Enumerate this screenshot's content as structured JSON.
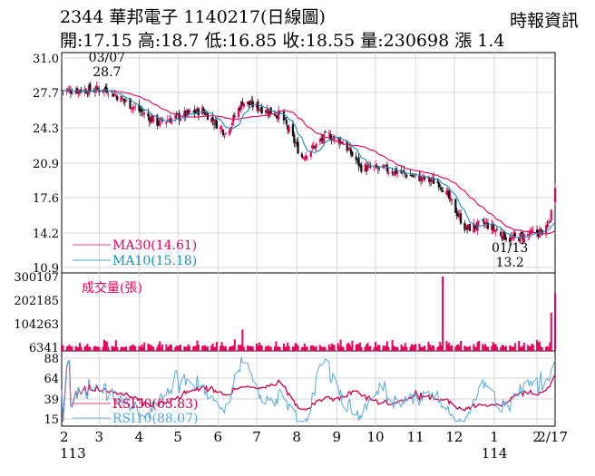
{
  "header": {
    "title": "2344  華邦電子 1140217(日線圖)",
    "ohlc": "開:17.15 高:18.7 低:16.85 收:18.55 量:230698 漲 1.4",
    "source": "時報資訊"
  },
  "colors": {
    "up": "#e8005a",
    "down": "#111111",
    "ma30": "#e0005a",
    "ma10": "#1a8fb0",
    "rsi30": "#d0004e",
    "rsi10": "#5aa8d8",
    "volume": "#e8005a",
    "grid": "#c8c8c8"
  },
  "chart_data": {
    "type": "candlestick",
    "price_panel": {
      "ylim": [
        10.9,
        31.0
      ],
      "yticks": [
        "31.0",
        "27.7",
        "24.3",
        "20.9",
        "17.6",
        "14.2",
        "10.9"
      ],
      "annotations": [
        {
          "label": "03/07",
          "value": "28.7",
          "date": "2024-03-07"
        },
        {
          "label": "01/13",
          "value": "13.2",
          "date": "2025-01-13"
        }
      ],
      "legend": [
        {
          "name": "MA30",
          "text": "MA30(14.61)",
          "value": 14.61
        },
        {
          "name": "MA10",
          "text": "MA10(15.18)",
          "value": 15.18
        }
      ],
      "key_points": [
        {
          "date": "2024-02-01",
          "close": 27.9
        },
        {
          "date": "2024-03-07",
          "close": 28.0,
          "high": 28.7
        },
        {
          "date": "2024-04-15",
          "close": 24.8
        },
        {
          "date": "2024-05-20",
          "close": 26.0
        },
        {
          "date": "2024-06-07",
          "close": 23.8
        },
        {
          "date": "2024-06-20",
          "close": 26.8
        },
        {
          "date": "2024-07-20",
          "close": 25.5
        },
        {
          "date": "2024-08-05",
          "close": 21.5
        },
        {
          "date": "2024-08-25",
          "close": 23.6
        },
        {
          "date": "2024-09-05",
          "close": 23.0
        },
        {
          "date": "2024-09-20",
          "close": 20.5
        },
        {
          "date": "2024-10-10",
          "close": 20.3
        },
        {
          "date": "2024-11-20",
          "close": 19.0
        },
        {
          "date": "2024-12-10",
          "close": 14.6
        },
        {
          "date": "2024-12-25",
          "close": 15.1
        },
        {
          "date": "2025-01-13",
          "close": 13.6,
          "low": 13.2
        },
        {
          "date": "2025-02-10",
          "close": 14.5
        },
        {
          "date": "2025-02-13",
          "close": 15.5
        },
        {
          "date": "2025-02-17",
          "open": 17.15,
          "high": 18.7,
          "low": 16.85,
          "close": 18.55
        }
      ]
    },
    "volume_panel": {
      "title": "成交量(張)",
      "yticks": [
        "300107",
        "202185",
        "104263",
        "6341"
      ],
      "ylim": [
        6341,
        300107
      ],
      "spikes": [
        {
          "date": "2024-06-20",
          "volume": 80000
        },
        {
          "date": "2024-11-22",
          "volume": 300107
        },
        {
          "date": "2025-02-14",
          "volume": 150000
        },
        {
          "date": "2025-02-17",
          "volume": 230698
        }
      ]
    },
    "rsi_panel": {
      "yticks": [
        "88",
        "64",
        "39",
        "15"
      ],
      "ylim": [
        15,
        88
      ],
      "legend": [
        {
          "name": "RSI30",
          "text": "RSI30(63.83)",
          "value": 63.83
        },
        {
          "name": "RSI10",
          "text": "RSI10(88.07)",
          "value": 88.07
        }
      ]
    },
    "x_axis": {
      "tick_labels": [
        {
          "label": "2",
          "date": "2024-02-01"
        },
        {
          "label": "3",
          "date": "2024-03-01"
        },
        {
          "label": "4",
          "date": "2024-04-01"
        },
        {
          "label": "5",
          "date": "2024-05-01"
        },
        {
          "label": "6",
          "date": "2024-06-01"
        },
        {
          "label": "7",
          "date": "2024-07-01"
        },
        {
          "label": "8",
          "date": "2024-08-01"
        },
        {
          "label": "9",
          "date": "2024-09-01"
        },
        {
          "label": "10",
          "date": "2024-10-01"
        },
        {
          "label": "11",
          "date": "2024-11-01"
        },
        {
          "label": "12",
          "date": "2024-12-01"
        },
        {
          "label": "1",
          "date": "2025-01-01"
        },
        {
          "label": "2",
          "date": "2025-02-03"
        },
        {
          "label": "2/17",
          "date": "2025-02-17"
        }
      ],
      "year_labels": [
        {
          "label": "113",
          "date": "2024-02-01"
        },
        {
          "label": "114",
          "date": "2025-01-01"
        }
      ]
    }
  }
}
